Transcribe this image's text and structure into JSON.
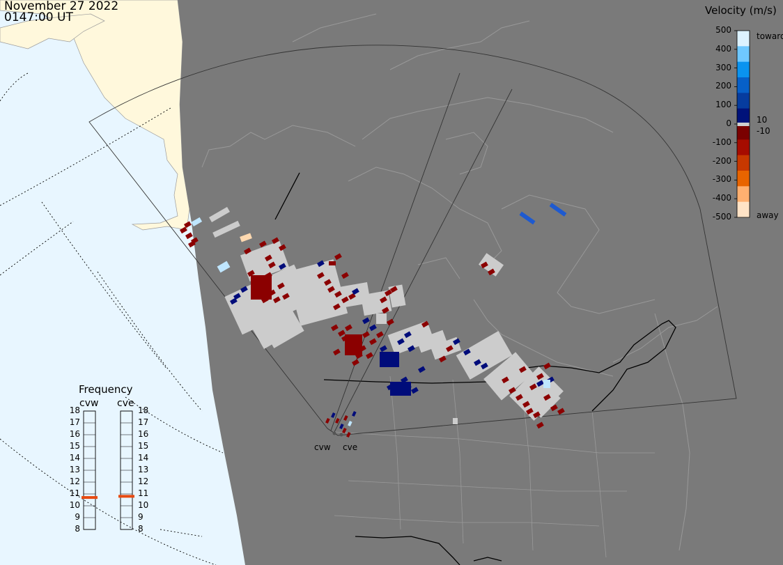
{
  "header": {
    "date": "November 27 2022",
    "time": "0147:00 UT"
  },
  "colorbar": {
    "title": "Velocity (m/s)",
    "ticks": [
      "500",
      "400",
      "300",
      "200",
      "100",
      "0",
      "-100",
      "-200",
      "-300",
      "-400",
      "-500"
    ],
    "inner_pos": "10",
    "inner_neg": "-10",
    "toward": "toward",
    "away": "away",
    "colors_top_to_bottom": [
      "#ddf2ff",
      "#6fc8ff",
      "#0a93ef",
      "#0760c8",
      "#063c9f",
      "#00127a",
      "#7a0000",
      "#a60c00",
      "#c73800",
      "#e86400",
      "#ffb070",
      "#ffe3c6"
    ]
  },
  "frequency": {
    "title": "Frequency",
    "radars": [
      {
        "name": "cvw",
        "value": 10.7
      },
      {
        "name": "cve",
        "value": 10.8
      }
    ],
    "ticks": [
      "18",
      "17",
      "16",
      "15",
      "14",
      "13",
      "12",
      "11",
      "10",
      "9",
      "8"
    ],
    "colors": {
      "marker": "#e84a10"
    }
  },
  "sites": {
    "cvw": "cvw",
    "cve": "cve"
  },
  "map_colors": {
    "ocean": "#e8f6ff",
    "night": "#7a7a7a",
    "land_day": "#fff8dc",
    "coast": "#9a9a9a",
    "border": "#000000"
  }
}
